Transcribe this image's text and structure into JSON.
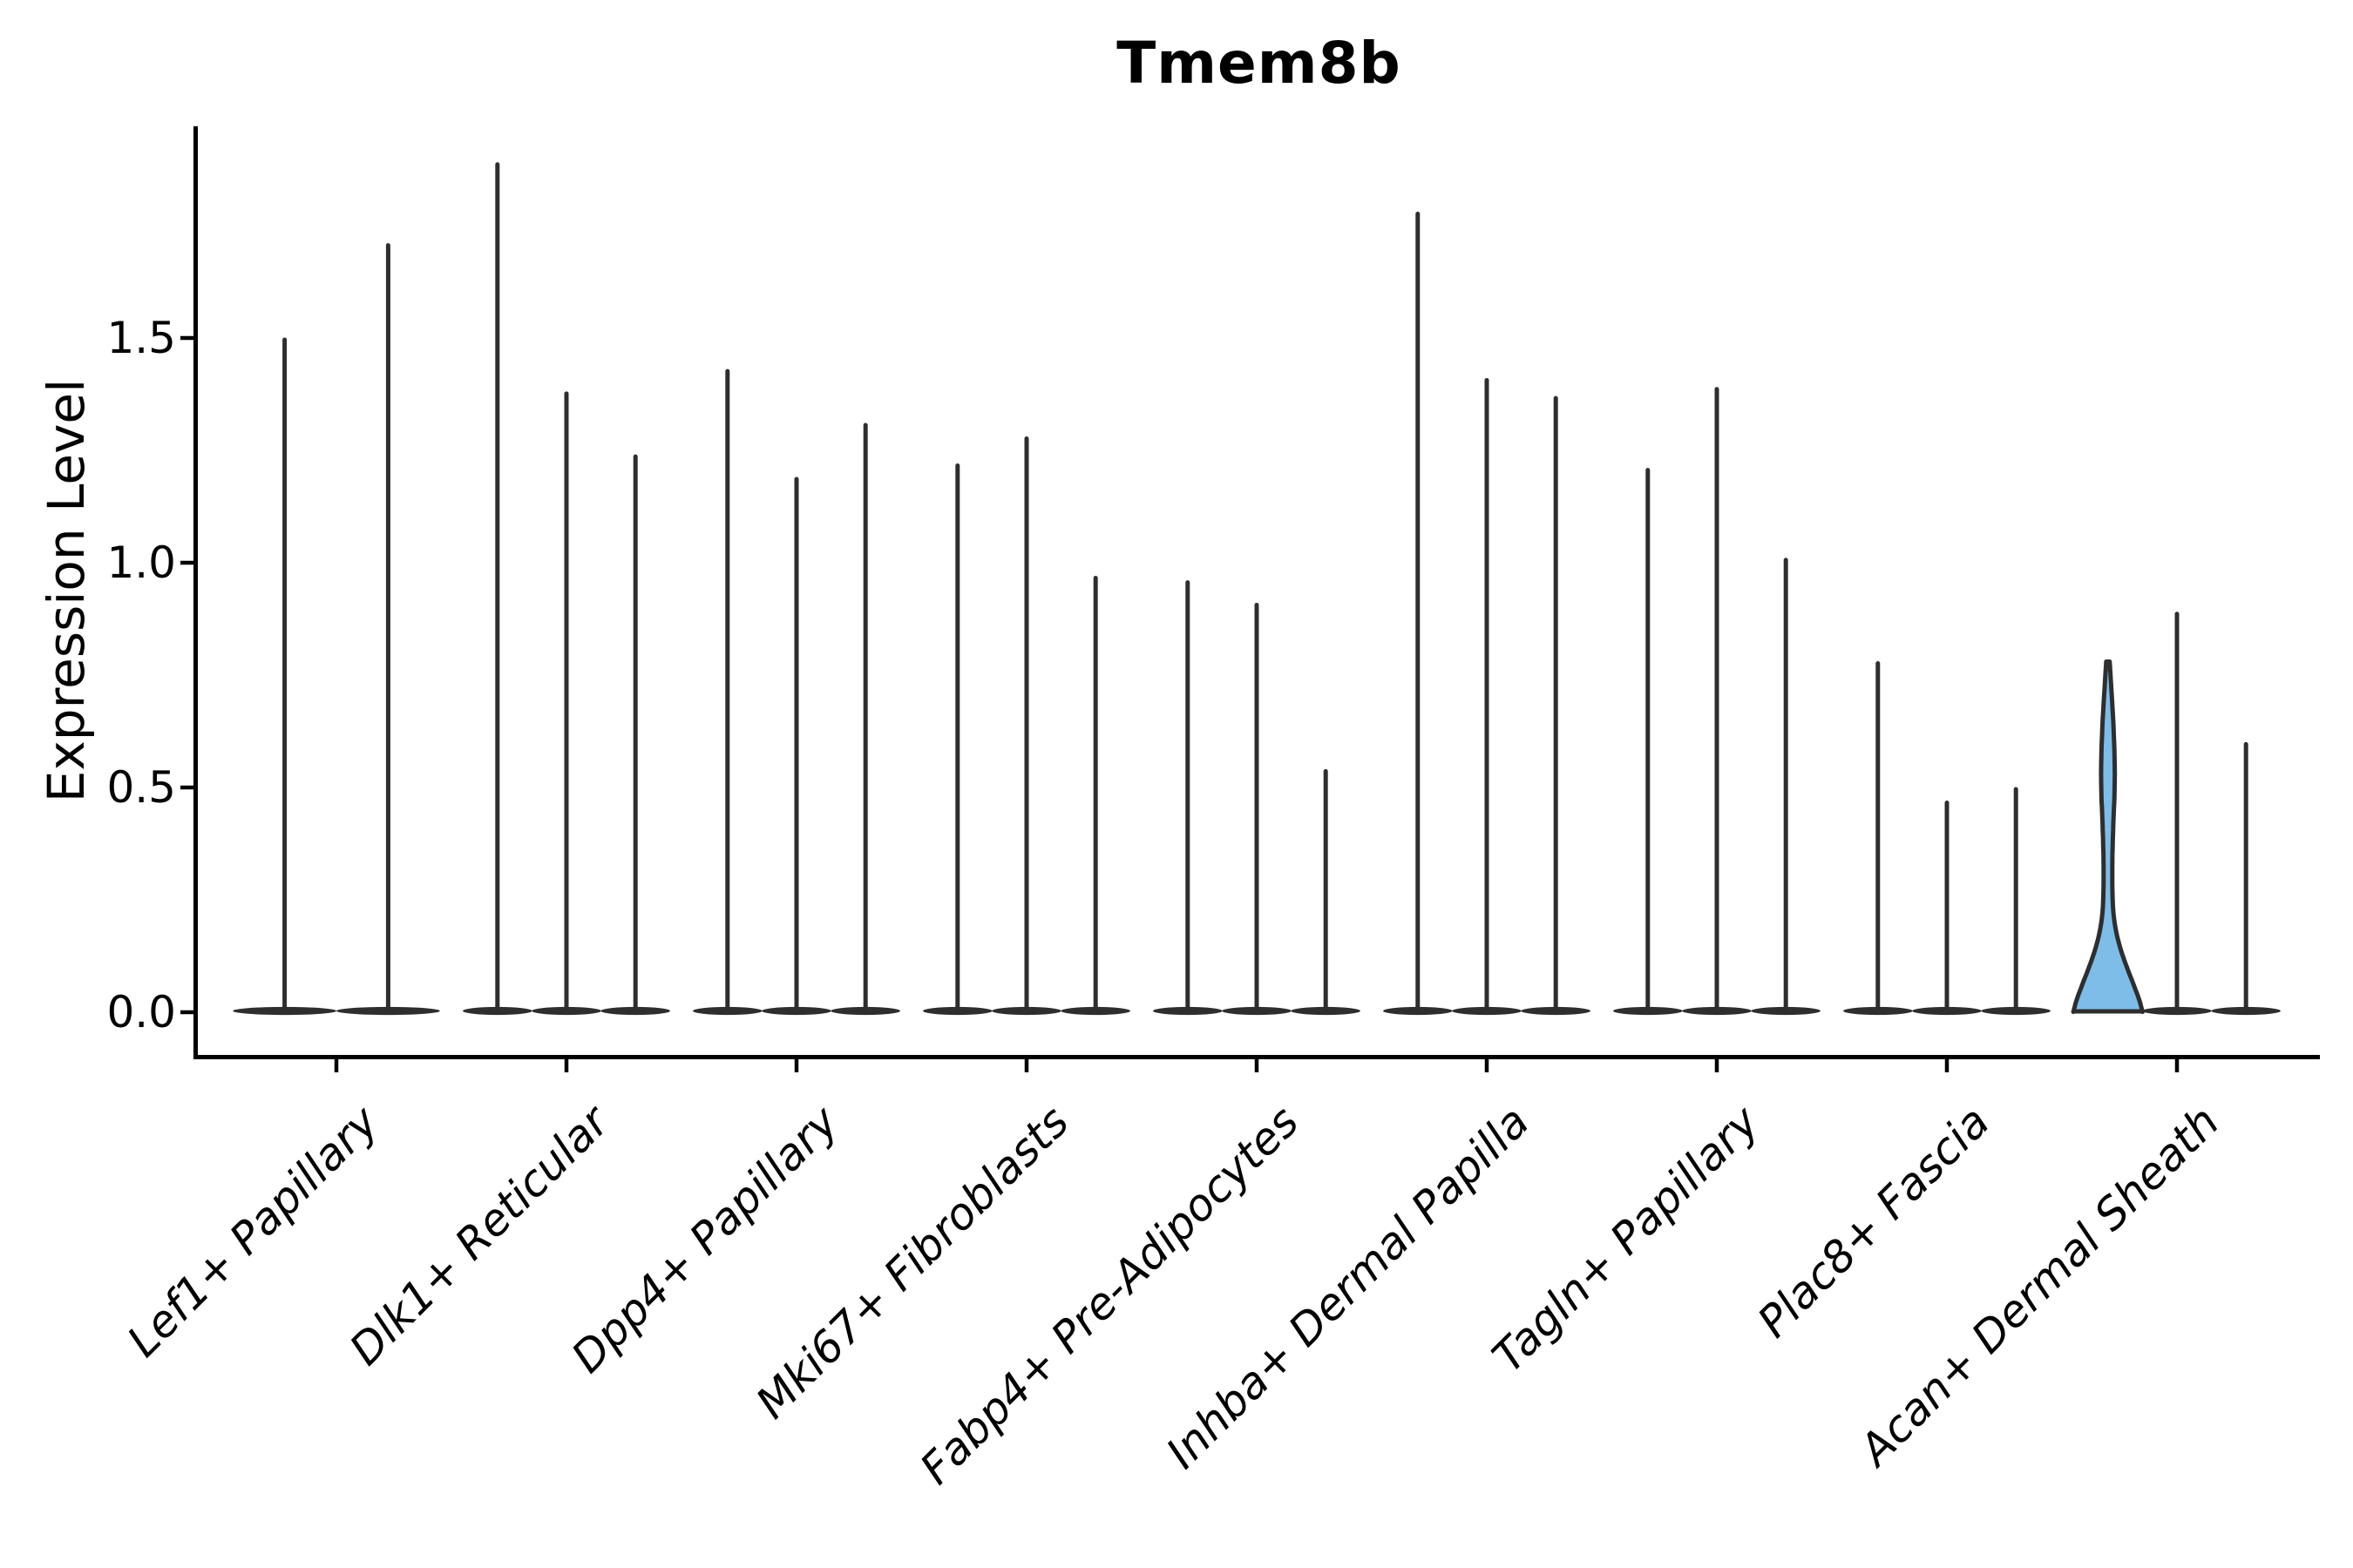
{
  "chart_data": {
    "type": "violin",
    "title": "Tmem8b",
    "ylabel": "Expression Level",
    "xlabel": "",
    "ytick_labels": [
      "0.0",
      "0.5",
      "1.0",
      "1.5"
    ],
    "ytick_values": [
      0.0,
      0.5,
      1.0,
      1.5
    ],
    "ylim": [
      -0.09,
      1.97
    ],
    "grid": false,
    "legend_position": "none",
    "categories": [
      "Lef1+ Papillary",
      "Dlk1+ Reticular",
      "Dpp4+ Papillary",
      "Mki67+ Fibroblasts",
      "Fabp4+ Pre-Adipocytes",
      "Inhba+ Dermal Papilla",
      "Tagln+ Papillary",
      "Plac8+ Fascia",
      "Acan+ Dermal Sheath"
    ],
    "groups": [
      {
        "category": "Lef1+ Papillary",
        "violins": [
          {
            "max": 1.5,
            "filled": false
          },
          {
            "max": 1.71,
            "filled": false
          }
        ]
      },
      {
        "category": "Dlk1+ Reticular",
        "violins": [
          {
            "max": 1.89,
            "filled": false
          },
          {
            "max": 1.38,
            "filled": false
          },
          {
            "max": 1.24,
            "filled": false
          }
        ]
      },
      {
        "category": "Dpp4+ Papillary",
        "violins": [
          {
            "max": 1.43,
            "filled": false
          },
          {
            "max": 1.19,
            "filled": false
          },
          {
            "max": 1.31,
            "filled": false
          }
        ]
      },
      {
        "category": "Mki67+ Fibroblasts",
        "violins": [
          {
            "max": 1.22,
            "filled": false
          },
          {
            "max": 1.28,
            "filled": false
          },
          {
            "max": 0.97,
            "filled": false
          }
        ]
      },
      {
        "category": "Fabp4+ Pre-Adipocytes",
        "violins": [
          {
            "max": 0.96,
            "filled": false
          },
          {
            "max": 0.91,
            "filled": false
          },
          {
            "max": 0.54,
            "filled": false
          }
        ]
      },
      {
        "category": "Inhba+ Dermal Papilla",
        "violins": [
          {
            "max": 1.78,
            "filled": false
          },
          {
            "max": 1.41,
            "filled": false
          },
          {
            "max": 1.37,
            "filled": false
          }
        ]
      },
      {
        "category": "Tagln+ Papillary",
        "violins": [
          {
            "max": 1.21,
            "filled": false
          },
          {
            "max": 1.39,
            "filled": false
          },
          {
            "max": 1.01,
            "filled": false
          }
        ]
      },
      {
        "category": "Plac8+ Fascia",
        "violins": [
          {
            "max": 0.78,
            "filled": false
          },
          {
            "max": 0.47,
            "filled": false
          },
          {
            "max": 0.5,
            "filled": false
          }
        ]
      },
      {
        "category": "Acan+ Dermal Sheath",
        "violins": [
          {
            "max": 0.78,
            "filled": true,
            "profile_value_halfwidth": [
              [
                0.78,
                0.05
              ],
              [
                0.73,
                0.09
              ],
              [
                0.65,
                0.155
              ],
              [
                0.57,
                0.195
              ],
              [
                0.5,
                0.2
              ],
              [
                0.42,
                0.155
              ],
              [
                0.34,
                0.125
              ],
              [
                0.27,
                0.125
              ],
              [
                0.21,
                0.16
              ],
              [
                0.155,
                0.3
              ],
              [
                0.105,
                0.52
              ],
              [
                0.06,
                0.75
              ],
              [
                0.025,
                0.92
              ],
              [
                0.0,
                1.0
              ]
            ]
          },
          {
            "max": 0.89,
            "filled": false
          },
          {
            "max": 0.6,
            "filled": false
          }
        ]
      }
    ],
    "colors": {
      "violin_outline": "#2e2e2e",
      "highlight_fill": "#7dbde8",
      "axis_spine": "#000000",
      "text": "#000000",
      "background": "#ffffff"
    }
  }
}
